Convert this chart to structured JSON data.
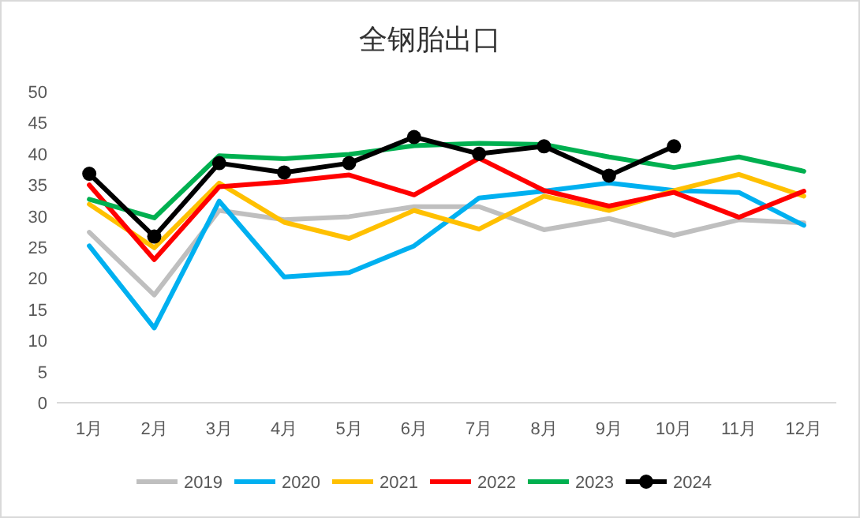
{
  "chart_data": {
    "type": "line",
    "title": "全钢胎出口",
    "categories": [
      "1月",
      "2月",
      "3月",
      "4月",
      "5月",
      "6月",
      "7月",
      "8月",
      "9月",
      "10月",
      "11月",
      "12月"
    ],
    "ylim": [
      0,
      50
    ],
    "yticks": [
      0,
      5,
      10,
      15,
      20,
      25,
      30,
      35,
      40,
      45,
      50
    ],
    "legend": "bottom",
    "series": [
      {
        "name": "2019",
        "color": "#bfbfbf",
        "marker": "none",
        "values": [
          27.4,
          17.3,
          30.9,
          29.4,
          29.9,
          31.5,
          31.5,
          27.8,
          29.6,
          26.9,
          29.4,
          28.9
        ]
      },
      {
        "name": "2020",
        "color": "#00b0f0",
        "marker": "none",
        "values": [
          25.2,
          12.0,
          32.4,
          20.2,
          20.9,
          25.2,
          32.9,
          34.0,
          35.3,
          34.1,
          33.8,
          28.5
        ]
      },
      {
        "name": "2021",
        "color": "#ffc000",
        "marker": "none",
        "values": [
          31.9,
          24.9,
          35.3,
          29.0,
          26.4,
          30.9,
          27.9,
          33.2,
          30.9,
          34.1,
          36.7,
          33.2
        ]
      },
      {
        "name": "2022",
        "color": "#ff0000",
        "marker": "none",
        "values": [
          35.0,
          23.0,
          34.7,
          35.5,
          36.6,
          33.4,
          39.3,
          34.1,
          31.6,
          33.8,
          29.8,
          34.0
        ]
      },
      {
        "name": "2023",
        "color": "#00b050",
        "marker": "none",
        "values": [
          32.7,
          29.7,
          39.7,
          39.2,
          39.9,
          41.3,
          41.7,
          41.5,
          39.5,
          37.8,
          39.5,
          37.2
        ]
      },
      {
        "name": "2024",
        "color": "#000000",
        "marker": "circle",
        "values": [
          36.8,
          26.7,
          38.5,
          37.0,
          38.5,
          42.7,
          40.0,
          41.2,
          36.5,
          41.2,
          null,
          null
        ]
      }
    ]
  }
}
